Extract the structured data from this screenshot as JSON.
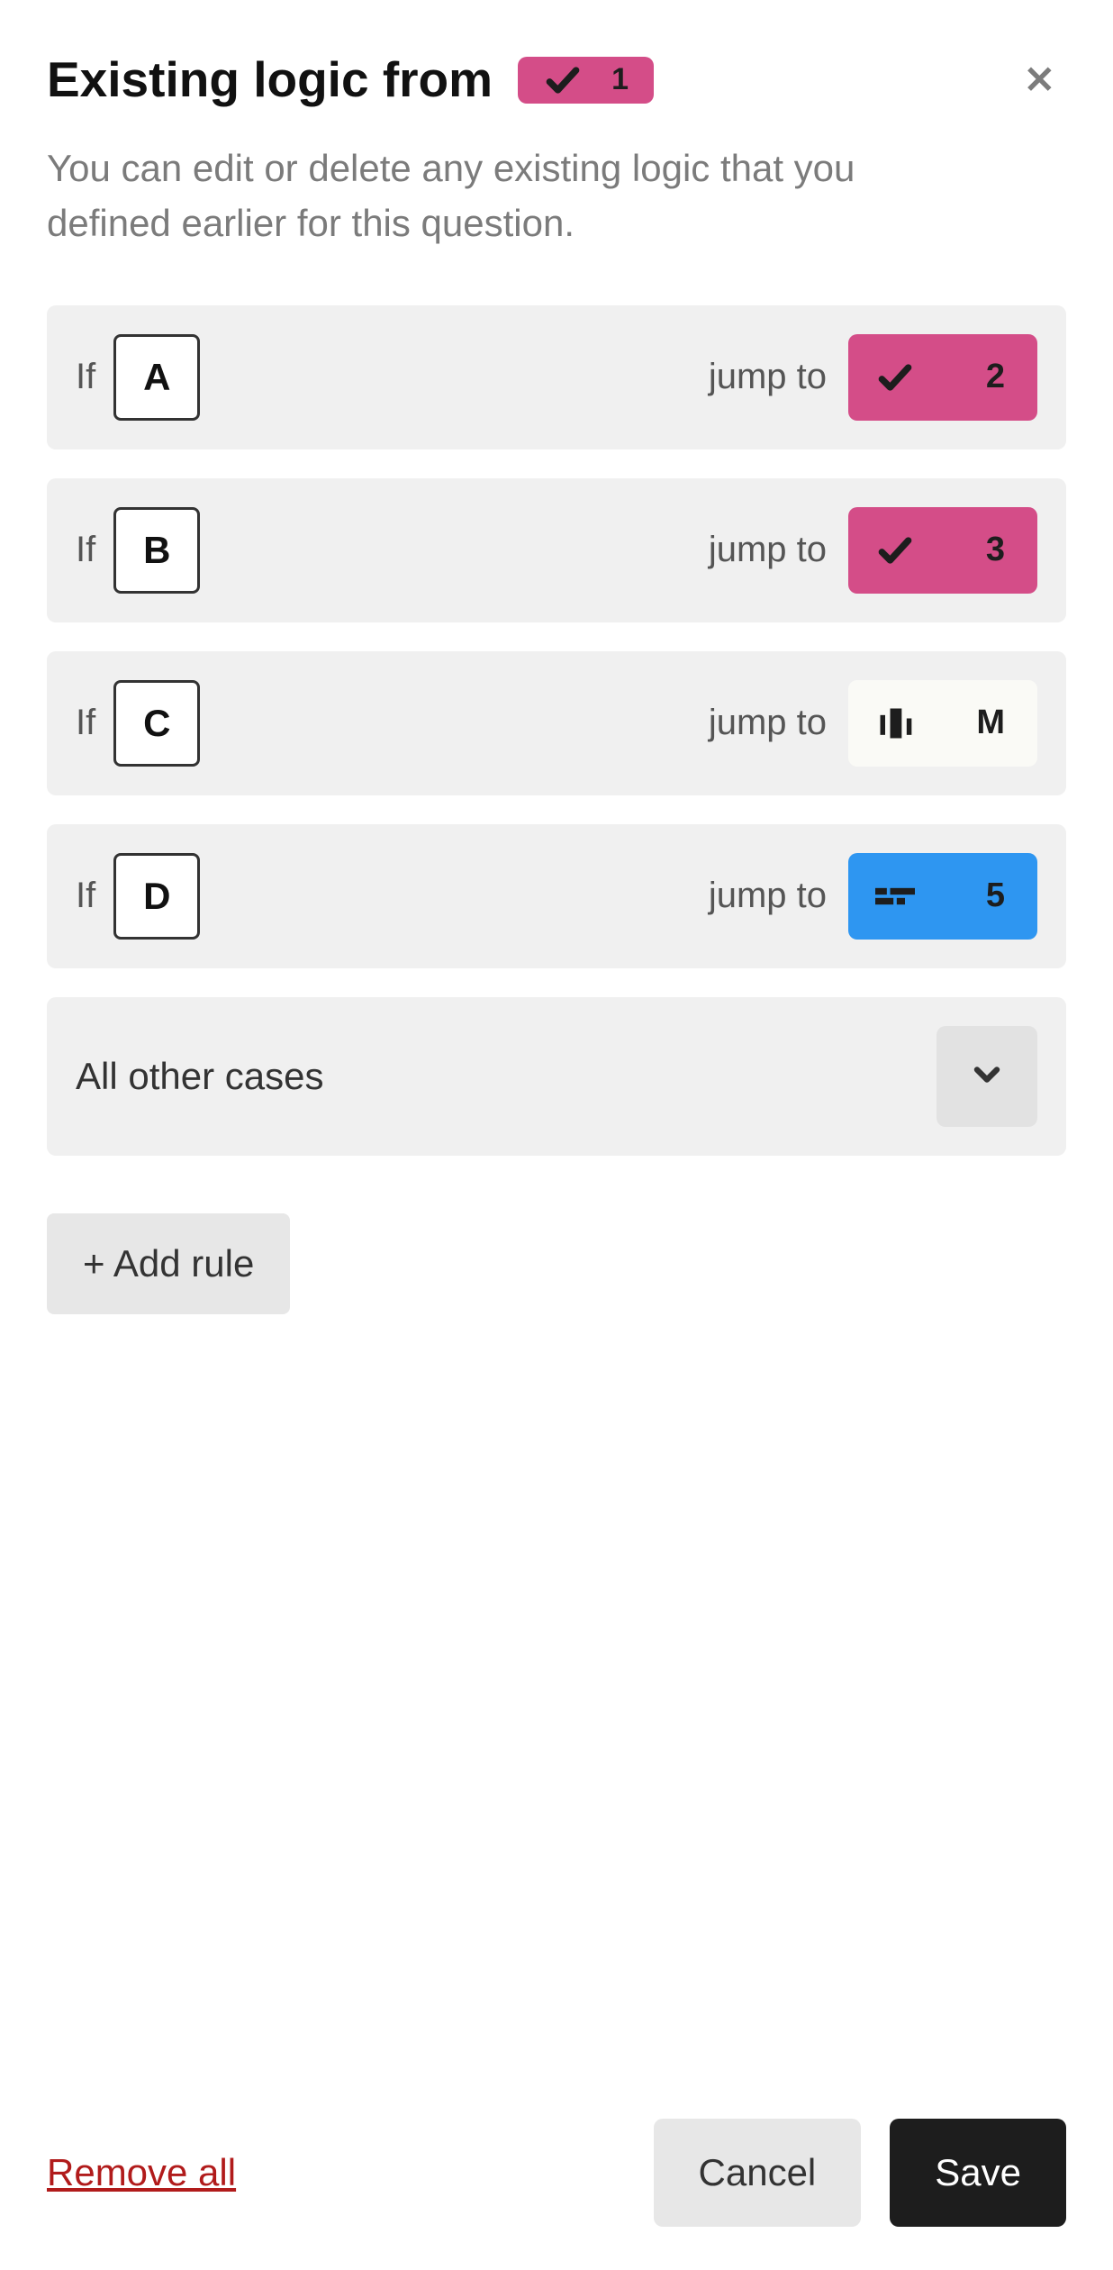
{
  "colors": {
    "pink": "#d44d88",
    "blue": "#2e96f1",
    "white_chip": "#fafaf6",
    "rule_bg": "#f0f0f0",
    "chevron_bg": "#e2e2e2",
    "btn_light": "#e7e7e7",
    "btn_dark": "#1d1d1d",
    "remove_red": "#b11b1b",
    "subtitle_gray": "#7b7b7b"
  },
  "header": {
    "title": "Existing logic from",
    "from_chip": {
      "icon": "check",
      "label": "1",
      "color": "pink"
    }
  },
  "subtitle": "You can edit or delete any existing logic that you defined earlier for this question.",
  "if_label": "If",
  "jump_label": "jump to",
  "rules": [
    {
      "option": "A",
      "target": {
        "icon": "check",
        "label": "2",
        "color": "pink"
      }
    },
    {
      "option": "B",
      "target": {
        "icon": "check",
        "label": "3",
        "color": "pink"
      }
    },
    {
      "option": "C",
      "target": {
        "icon": "bars",
        "label": "M",
        "color": "white"
      }
    },
    {
      "option": "D",
      "target": {
        "icon": "form",
        "label": "5",
        "color": "blue"
      }
    }
  ],
  "fallback_label": "All other cases",
  "add_rule_label": "+ Add rule",
  "footer": {
    "remove_all": "Remove all",
    "cancel": "Cancel",
    "save": "Save"
  }
}
